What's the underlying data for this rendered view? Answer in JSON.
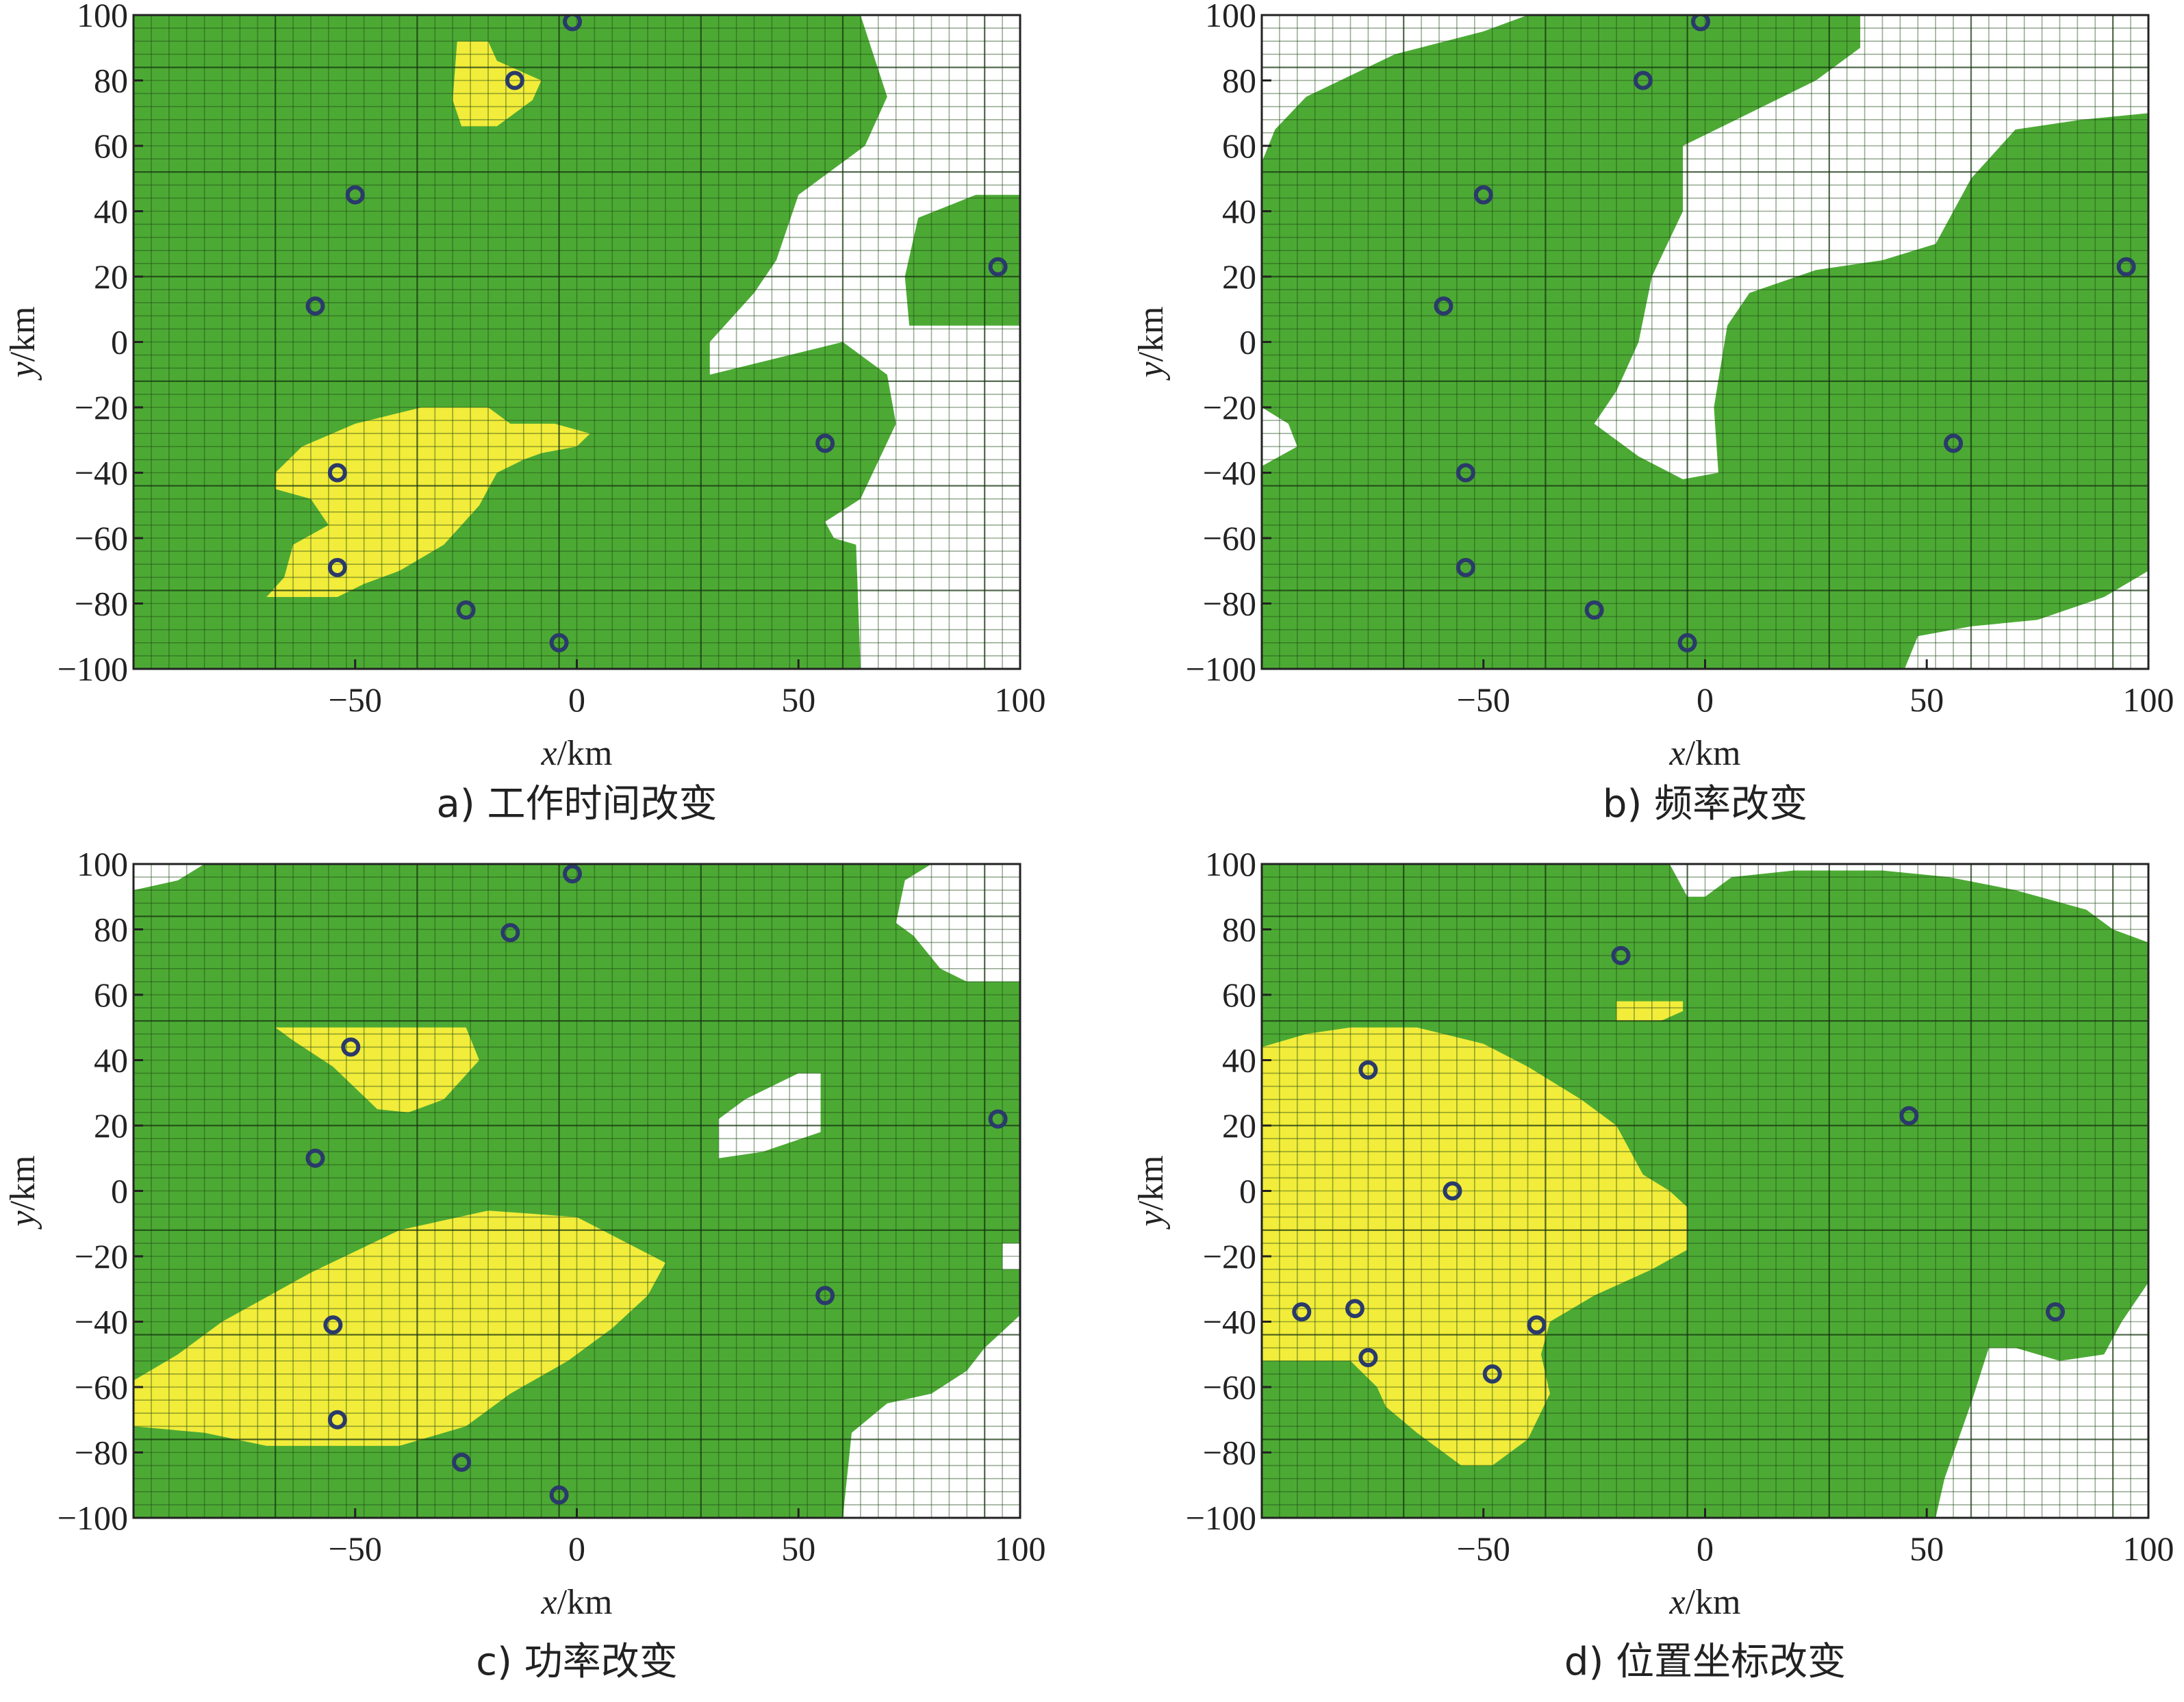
{
  "colors": {
    "green": "#4caa34",
    "yellow": "#f2ec3a",
    "white": "#ffffff",
    "grid_on_green": "#2e7a22",
    "grid_on_yellow": "#9c9820",
    "grid_on_white": "#5a5a5a",
    "station_stroke": "#2a3a6a"
  },
  "chart_data": [
    {
      "type": "heatmap",
      "caption": "a) 工作时间改变",
      "xlabel": "x/km",
      "ylabel": "y/km",
      "xlim": [
        -100,
        100
      ],
      "ylim": [
        -100,
        100
      ],
      "xticks": [
        -50,
        0,
        50,
        100
      ],
      "yticks": [
        100,
        80,
        60,
        40,
        20,
        0,
        -20,
        -40,
        -60,
        -80,
        -100
      ],
      "grid": true,
      "regions": {
        "white": [
          [
            [
              64,
              100
            ],
            [
              100,
              100
            ],
            [
              100,
              -100
            ],
            [
              64,
              -100
            ],
            [
              63,
              -62
            ],
            [
              58,
              -60
            ],
            [
              56,
              -55
            ],
            [
              64,
              -48
            ],
            [
              72,
              -25
            ],
            [
              70,
              -10
            ],
            [
              60,
              0
            ],
            [
              45,
              -5
            ],
            [
              30,
              -10
            ],
            [
              30,
              0
            ],
            [
              40,
              15
            ],
            [
              45,
              25
            ],
            [
              50,
              45
            ],
            [
              65,
              60
            ],
            [
              70,
              75
            ]
          ]
        ],
        "green_over_white": [
          [
            [
              75,
              5
            ],
            [
              100,
              5
            ],
            [
              100,
              45
            ],
            [
              90,
              45
            ],
            [
              77,
              38
            ],
            [
              74,
              20
            ]
          ]
        ],
        "yellow": [
          [
            [
              -27,
              92
            ],
            [
              -20,
              92
            ],
            [
              -18,
              86
            ],
            [
              -8,
              80
            ],
            [
              -10,
              74
            ],
            [
              -18,
              66
            ],
            [
              -26,
              66
            ],
            [
              -28,
              74
            ]
          ],
          [
            [
              -68,
              -40
            ],
            [
              -62,
              -32
            ],
            [
              -50,
              -25
            ],
            [
              -35,
              -20
            ],
            [
              -20,
              -20
            ],
            [
              -15,
              -25
            ],
            [
              -5,
              -25
            ],
            [
              3,
              -28
            ],
            [
              0,
              -32
            ],
            [
              -8,
              -34
            ],
            [
              -12,
              -36
            ],
            [
              -18,
              -40
            ],
            [
              -22,
              -50
            ],
            [
              -30,
              -62
            ],
            [
              -40,
              -70
            ],
            [
              -48,
              -74
            ],
            [
              -54,
              -78
            ],
            [
              -70,
              -78
            ],
            [
              -66,
              -72
            ],
            [
              -64,
              -62
            ],
            [
              -56,
              -56
            ],
            [
              -60,
              -48
            ],
            [
              -68,
              -45
            ]
          ]
        ]
      },
      "stations": [
        {
          "x": -1,
          "y": 98
        },
        {
          "x": -14,
          "y": 80
        },
        {
          "x": -50,
          "y": 45
        },
        {
          "x": -59,
          "y": 11
        },
        {
          "x": 95,
          "y": 23
        },
        {
          "x": 56,
          "y": -31
        },
        {
          "x": -54,
          "y": -40
        },
        {
          "x": -54,
          "y": -69
        },
        {
          "x": -25,
          "y": -82
        },
        {
          "x": -4,
          "y": -92
        }
      ]
    },
    {
      "type": "heatmap",
      "caption": "b) 频率改变",
      "xlabel": "x/km",
      "ylabel": "y/km",
      "xlim": [
        -100,
        100
      ],
      "ylim": [
        -100,
        100
      ],
      "xticks": [
        -50,
        0,
        50,
        100
      ],
      "yticks": [
        100,
        80,
        60,
        40,
        20,
        0,
        -20,
        -40,
        -60,
        -80,
        -100
      ],
      "grid": true,
      "regions": {
        "white": [
          [
            [
              -100,
              100
            ],
            [
              -40,
              100
            ],
            [
              -50,
              95
            ],
            [
              -70,
              88
            ],
            [
              -90,
              75
            ],
            [
              -97,
              65
            ],
            [
              -100,
              55
            ]
          ],
          [
            [
              35,
              100
            ],
            [
              100,
              100
            ],
            [
              100,
              70
            ],
            [
              85,
              68
            ],
            [
              70,
              65
            ],
            [
              60,
              50
            ],
            [
              52,
              30
            ],
            [
              40,
              25
            ],
            [
              25,
              22
            ],
            [
              10,
              15
            ],
            [
              5,
              5
            ],
            [
              2,
              -20
            ],
            [
              3,
              -40
            ],
            [
              -5,
              -42
            ],
            [
              -15,
              -35
            ],
            [
              -25,
              -25
            ],
            [
              -20,
              -15
            ],
            [
              -15,
              0
            ],
            [
              -12,
              20
            ],
            [
              -5,
              40
            ],
            [
              -5,
              60
            ],
            [
              10,
              70
            ],
            [
              25,
              80
            ],
            [
              35,
              90
            ]
          ],
          [
            [
              -100,
              -20
            ],
            [
              -94,
              -25
            ],
            [
              -92,
              -32
            ],
            [
              -100,
              -38
            ]
          ],
          [
            [
              45,
              -100
            ],
            [
              100,
              -100
            ],
            [
              100,
              -70
            ],
            [
              90,
              -78
            ],
            [
              75,
              -85
            ],
            [
              60,
              -87
            ],
            [
              48,
              -90
            ]
          ]
        ],
        "yellow": []
      },
      "stations": [
        {
          "x": -1,
          "y": 98
        },
        {
          "x": -14,
          "y": 80
        },
        {
          "x": -50,
          "y": 45
        },
        {
          "x": -59,
          "y": 11
        },
        {
          "x": 95,
          "y": 23
        },
        {
          "x": 56,
          "y": -31
        },
        {
          "x": -54,
          "y": -40
        },
        {
          "x": -54,
          "y": -69
        },
        {
          "x": -25,
          "y": -82
        },
        {
          "x": -4,
          "y": -92
        }
      ]
    },
    {
      "type": "heatmap",
      "caption": "c) 功率改变",
      "xlabel": "x/km",
      "ylabel": "y/km",
      "xlim": [
        -100,
        100
      ],
      "ylim": [
        -100,
        100
      ],
      "xticks": [
        -50,
        0,
        50,
        100
      ],
      "yticks": [
        100,
        80,
        60,
        40,
        20,
        0,
        -20,
        -40,
        -60,
        -80,
        -100
      ],
      "grid": true,
      "regions": {
        "white": [
          [
            [
              -100,
              100
            ],
            [
              -84,
              100
            ],
            [
              -90,
              95
            ],
            [
              -100,
              92
            ]
          ],
          [
            [
              80,
              100
            ],
            [
              100,
              100
            ],
            [
              100,
              64
            ],
            [
              88,
              64
            ],
            [
              82,
              68
            ],
            [
              76,
              78
            ],
            [
              72,
              82
            ],
            [
              74,
              95
            ]
          ],
          [
            [
              32,
              22
            ],
            [
              38,
              28
            ],
            [
              50,
              36
            ],
            [
              55,
              36
            ],
            [
              55,
              18
            ],
            [
              42,
              12
            ],
            [
              32,
              10
            ]
          ],
          [
            [
              60,
              -100
            ],
            [
              100,
              -100
            ],
            [
              100,
              -38
            ],
            [
              92,
              -48
            ],
            [
              88,
              -55
            ],
            [
              80,
              -62
            ],
            [
              70,
              -65
            ],
            [
              62,
              -74
            ]
          ],
          [
            [
              96,
              -16
            ],
            [
              100,
              -16
            ],
            [
              100,
              -24
            ],
            [
              96,
              -24
            ]
          ]
        ],
        "yellow": [
          [
            [
              -68,
              50
            ],
            [
              -25,
              50
            ],
            [
              -22,
              40
            ],
            [
              -30,
              28
            ],
            [
              -38,
              24
            ],
            [
              -45,
              25
            ],
            [
              -55,
              38
            ],
            [
              -64,
              46
            ]
          ],
          [
            [
              -100,
              -58
            ],
            [
              -90,
              -50
            ],
            [
              -80,
              -40
            ],
            [
              -60,
              -25
            ],
            [
              -40,
              -12
            ],
            [
              -20,
              -6
            ],
            [
              0,
              -8
            ],
            [
              10,
              -15
            ],
            [
              20,
              -22
            ],
            [
              16,
              -32
            ],
            [
              8,
              -42
            ],
            [
              -2,
              -52
            ],
            [
              -15,
              -62
            ],
            [
              -25,
              -72
            ],
            [
              -40,
              -78
            ],
            [
              -70,
              -78
            ],
            [
              -84,
              -74
            ],
            [
              -100,
              -72
            ]
          ]
        ]
      },
      "stations": [
        {
          "x": -1,
          "y": 97
        },
        {
          "x": -15,
          "y": 79
        },
        {
          "x": -51,
          "y": 44
        },
        {
          "x": -59,
          "y": 10
        },
        {
          "x": 95,
          "y": 22
        },
        {
          "x": 56,
          "y": -32
        },
        {
          "x": -55,
          "y": -41
        },
        {
          "x": -54,
          "y": -70
        },
        {
          "x": -26,
          "y": -83
        },
        {
          "x": -4,
          "y": -93
        }
      ]
    },
    {
      "type": "heatmap",
      "caption": "d) 位置坐标改变",
      "xlabel": "x/km",
      "ylabel": "y/km",
      "xlim": [
        -100,
        100
      ],
      "ylim": [
        -100,
        100
      ],
      "xticks": [
        -50,
        0,
        50,
        100
      ],
      "yticks": [
        100,
        80,
        60,
        40,
        20,
        0,
        -20,
        -40,
        -60,
        -80,
        -100
      ],
      "grid": true,
      "regions": {
        "white": [
          [
            [
              -8,
              100
            ],
            [
              100,
              100
            ],
            [
              100,
              76
            ],
            [
              92,
              80
            ],
            [
              86,
              86
            ],
            [
              70,
              92
            ],
            [
              55,
              96
            ],
            [
              40,
              98
            ],
            [
              20,
              98
            ],
            [
              6,
              96
            ],
            [
              0,
              90
            ],
            [
              -4,
              90
            ]
          ],
          [
            [
              52,
              -100
            ],
            [
              100,
              -100
            ],
            [
              100,
              -28
            ],
            [
              94,
              -40
            ],
            [
              90,
              -50
            ],
            [
              80,
              -52
            ],
            [
              70,
              -48
            ],
            [
              64,
              -48
            ],
            [
              60,
              -65
            ],
            [
              54,
              -88
            ]
          ]
        ],
        "yellow": [
          [
            [
              -100,
              44
            ],
            [
              -90,
              48
            ],
            [
              -80,
              50
            ],
            [
              -65,
              50
            ],
            [
              -50,
              45
            ],
            [
              -40,
              38
            ],
            [
              -28,
              28
            ],
            [
              -20,
              20
            ],
            [
              -14,
              5
            ],
            [
              -8,
              0
            ],
            [
              -4,
              -5
            ],
            [
              -4,
              -18
            ],
            [
              -12,
              -24
            ],
            [
              -25,
              -32
            ],
            [
              -35,
              -40
            ],
            [
              -37,
              -50
            ],
            [
              -35,
              -62
            ],
            [
              -40,
              -76
            ],
            [
              -48,
              -84
            ],
            [
              -55,
              -84
            ],
            [
              -65,
              -74
            ],
            [
              -72,
              -66
            ],
            [
              -74,
              -60
            ],
            [
              -80,
              -52
            ],
            [
              -100,
              -52
            ]
          ],
          [
            [
              -20,
              58
            ],
            [
              -5,
              58
            ],
            [
              -5,
              55
            ],
            [
              -10,
              52
            ],
            [
              -20,
              52
            ]
          ]
        ]
      },
      "stations": [
        {
          "x": -19,
          "y": 72
        },
        {
          "x": -76,
          "y": 37
        },
        {
          "x": 46,
          "y": 23
        },
        {
          "x": -57,
          "y": 0
        },
        {
          "x": -91,
          "y": -37
        },
        {
          "x": -79,
          "y": -36
        },
        {
          "x": -38,
          "y": -41
        },
        {
          "x": 79,
          "y": -37
        },
        {
          "x": -76,
          "y": -51
        },
        {
          "x": -48,
          "y": -56
        }
      ]
    }
  ]
}
